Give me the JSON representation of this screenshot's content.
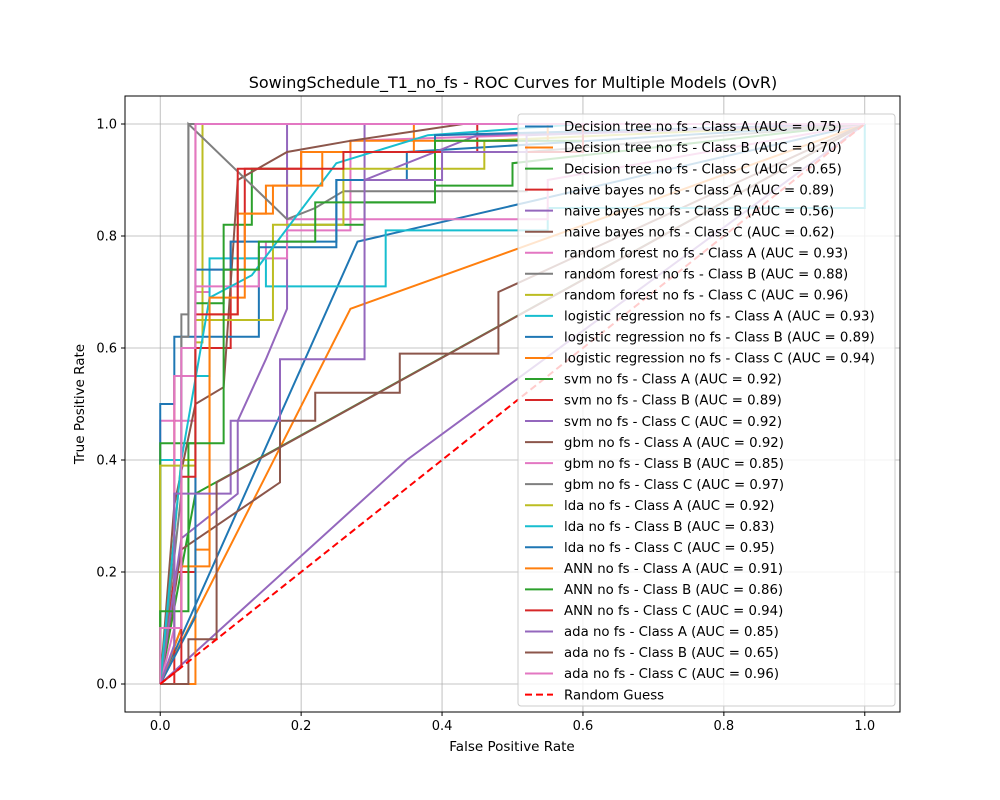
{
  "chart_data": {
    "type": "line",
    "title": "SowingSchedule_T1_no_fs - ROC Curves for Multiple Models (OvR)",
    "xlabel": "False Positive Rate",
    "ylabel": "True Positive Rate",
    "xlim": [
      -0.05,
      1.05
    ],
    "ylim": [
      -0.05,
      1.05
    ],
    "xticks": [
      0.0,
      0.2,
      0.4,
      0.6,
      0.8,
      1.0
    ],
    "yticks": [
      0.0,
      0.2,
      0.4,
      0.6,
      0.8,
      1.0
    ],
    "xtick_labels": [
      "0.0",
      "0.2",
      "0.4",
      "0.6",
      "0.8",
      "1.0"
    ],
    "ytick_labels": [
      "0.0",
      "0.2",
      "0.4",
      "0.6",
      "0.8",
      "1.0"
    ],
    "grid": true,
    "legend_position": "top-right",
    "series": [
      {
        "name": "Decision tree no fs - Class A (AUC = 0.75)",
        "color": "#1f77b4",
        "dashed": false,
        "x": [
          0,
          0.28,
          1
        ],
        "y": [
          0,
          0.79,
          1
        ]
      },
      {
        "name": "Decision tree no fs - Class B (AUC = 0.70)",
        "color": "#ff7f0e",
        "dashed": false,
        "x": [
          0,
          0.27,
          1
        ],
        "y": [
          0,
          0.67,
          1
        ]
      },
      {
        "name": "Decision tree no fs - Class C (AUC = 0.65)",
        "color": "#2ca02c",
        "dashed": false,
        "x": [
          0,
          0.05,
          1
        ],
        "y": [
          0,
          0.34,
          1
        ]
      },
      {
        "name": "naive bayes no fs - Class A (AUC = 0.89)",
        "color": "#d62728",
        "dashed": false,
        "x": [
          0,
          0.02,
          0.02,
          0.05,
          0.05,
          0.1,
          0.1,
          0.12,
          0.12,
          0.2,
          0.2,
          0.45,
          0.45,
          1
        ],
        "y": [
          0,
          0,
          0.2,
          0.2,
          0.6,
          0.6,
          0.79,
          0.79,
          0.92,
          0.92,
          0.95,
          0.95,
          1,
          1
        ]
      },
      {
        "name": "naive bayes no fs - Class B (AUC = 0.56)",
        "color": "#9467bd",
        "dashed": false,
        "x": [
          0,
          0.35,
          1
        ],
        "y": [
          0,
          0.4,
          1
        ]
      },
      {
        "name": "naive bayes no fs - Class C (AUC = 0.62)",
        "color": "#8c564b",
        "dashed": false,
        "x": [
          0,
          0.03,
          0.17,
          0.17,
          0.22,
          0.22,
          0.34,
          0.34,
          0.48,
          0.48,
          1
        ],
        "y": [
          0,
          0.24,
          0.36,
          0.47,
          0.47,
          0.52,
          0.52,
          0.59,
          0.59,
          0.7,
          1
        ]
      },
      {
        "name": "random forest no fs - Class A (AUC = 0.93)",
        "color": "#e377c2",
        "dashed": false,
        "x": [
          0,
          0,
          0.05,
          0.05,
          0.07,
          0.07,
          0.12,
          0.12,
          0.15,
          0.15,
          0.18,
          0.18,
          0.27,
          0.27,
          1
        ],
        "y": [
          0,
          0.47,
          0.47,
          0.7,
          0.7,
          0.74,
          0.74,
          0.76,
          0.76,
          0.79,
          0.79,
          0.81,
          0.81,
          0.97,
          1
        ]
      },
      {
        "name": "random forest no fs - Class B (AUC = 0.88)",
        "color": "#7f7f7f",
        "dashed": false,
        "x": [
          0,
          0.03,
          0.03,
          0.04,
          0.04,
          1
        ],
        "y": [
          0,
          0.1,
          0.66,
          0.66,
          1.0,
          1
        ]
      },
      {
        "name": "random forest no fs - Class C (AUC = 0.96)",
        "color": "#bcbd22",
        "dashed": false,
        "x": [
          0,
          0.03,
          0.03,
          0.05,
          0.05,
          0.06,
          0.06,
          1
        ],
        "y": [
          0,
          0.4,
          0.4,
          0.4,
          0.61,
          0.61,
          1.0,
          1
        ]
      },
      {
        "name": "logistic regression no fs - Class A (AUC = 0.93)",
        "color": "#17becf",
        "dashed": false,
        "x": [
          0,
          0,
          0.03,
          0.03,
          0.07,
          0.07,
          0.15,
          0.15,
          0.32,
          0.32,
          0.55,
          0.55,
          1,
          1
        ],
        "y": [
          0,
          0.4,
          0.4,
          0.55,
          0.55,
          0.76,
          0.76,
          0.71,
          0.71,
          0.81,
          0.81,
          0.85,
          0.85,
          1
        ]
      },
      {
        "name": "logistic regression no fs - Class B (AUC = 0.89)",
        "color": "#1f77b4",
        "dashed": false,
        "x": [
          0,
          0,
          0.02,
          0.02,
          0.14,
          0.14,
          0.25,
          0.25,
          0.35,
          0.35,
          1
        ],
        "y": [
          0,
          0.5,
          0.5,
          0.62,
          0.62,
          0.78,
          0.78,
          0.9,
          0.9,
          0.95,
          1
        ]
      },
      {
        "name": "logistic regression no fs - Class C (AUC = 0.94)",
        "color": "#ff7f0e",
        "dashed": false,
        "x": [
          0,
          0.05,
          0.05,
          0.07,
          0.07,
          0.11,
          0.11,
          0.15,
          0.15,
          0.2,
          0.2,
          0.27,
          0.27,
          0.36,
          0.36,
          1
        ],
        "y": [
          0,
          0,
          0.24,
          0.24,
          0.66,
          0.66,
          0.84,
          0.84,
          0.89,
          0.89,
          0.95,
          0.95,
          0.97,
          0.97,
          1,
          1
        ]
      },
      {
        "name": "svm no fs - Class A (AUC = 0.92)",
        "color": "#2ca02c",
        "dashed": false,
        "x": [
          0,
          0,
          0.05,
          0.05,
          0.09,
          0.09,
          0.13,
          0.13,
          0.18,
          0.18,
          0.29,
          0.29,
          0.39,
          0.39,
          0.5,
          0.5,
          1
        ],
        "y": [
          0,
          0.43,
          0.43,
          0.68,
          0.68,
          0.82,
          0.82,
          0.92,
          0.92,
          0.82,
          0.82,
          0.86,
          0.86,
          0.89,
          0.89,
          0.93,
          1
        ]
      },
      {
        "name": "svm no fs - Class B (AUC = 0.89)",
        "color": "#d62728",
        "dashed": false,
        "x": [
          0,
          0.02,
          0.02,
          0.05,
          0.05,
          0.09,
          0.09,
          1
        ],
        "y": [
          0,
          0.19,
          0.55,
          0.55,
          1.0,
          1.0,
          1.0,
          1
        ]
      },
      {
        "name": "svm no fs - Class C (AUC = 0.92)",
        "color": "#9467bd",
        "dashed": false,
        "x": [
          0,
          0.03,
          0.03,
          0.11,
          0.11,
          0.15,
          0.15,
          0.18,
          0.18,
          0.29,
          0.29,
          0.45,
          1
        ],
        "y": [
          0,
          0.26,
          0.26,
          0.34,
          0.47,
          0.58,
          0.58,
          0.67,
          1.0,
          1.0,
          0.9,
          0.98,
          1
        ]
      },
      {
        "name": "gbm no fs - Class A (AUC = 0.92)",
        "color": "#8c564b",
        "dashed": false,
        "x": [
          0,
          0.02,
          0.02,
          0.05,
          0.05,
          0.09,
          0.09,
          0.11,
          0.11,
          0.18,
          0.18,
          0.27,
          0.27,
          0.43,
          0.43,
          1
        ],
        "y": [
          0,
          0.32,
          0.32,
          0.5,
          0.5,
          0.53,
          0.53,
          0.9,
          0.9,
          0.95,
          0.95,
          0.97,
          0.97,
          1,
          1,
          1
        ]
      },
      {
        "name": "gbm no fs - Class B (AUC = 0.85)",
        "color": "#e377c2",
        "dashed": false,
        "x": [
          0,
          0.02,
          0.02,
          0.05,
          0.05,
          0.14,
          0.14,
          0.18,
          0.18,
          0.29,
          0.29,
          0.55,
          0.55,
          1
        ],
        "y": [
          0,
          0.1,
          0.55,
          0.55,
          0.71,
          0.71,
          0.76,
          0.76,
          0.83,
          0.83,
          0.83,
          0.83,
          0.9,
          1
        ]
      },
      {
        "name": "gbm no fs - Class C (AUC = 0.97)",
        "color": "#7f7f7f",
        "dashed": false,
        "x": [
          0,
          0.03,
          0.03,
          0.04,
          0.04,
          0.18,
          0.18,
          0.22,
          0.22,
          0.26,
          0.26,
          0.52,
          0.52,
          1
        ],
        "y": [
          0,
          0.34,
          0.62,
          0.62,
          1.0,
          0.83,
          0.83,
          0.85,
          0.85,
          0.88,
          0.88,
          0.88,
          0.95,
          1
        ]
      },
      {
        "name": "lda no fs - Class A (AUC = 0.92)",
        "color": "#bcbd22",
        "dashed": false,
        "x": [
          0,
          0,
          0.05,
          0.05,
          0.16,
          0.16,
          0.26,
          0.26,
          0.46,
          0.46,
          1
        ],
        "y": [
          0,
          0.39,
          0.39,
          0.65,
          0.65,
          0.82,
          0.82,
          0.92,
          0.92,
          0.97,
          1
        ]
      },
      {
        "name": "lda no fs - Class B (AUC = 0.83)",
        "color": "#17becf",
        "dashed": false,
        "x": [
          0,
          0.03,
          0.03,
          0.07,
          0.07,
          0.13,
          0.13,
          0.25,
          0.25,
          0.38,
          0.38,
          0.6,
          0.6,
          1
        ],
        "y": [
          0,
          0.4,
          0.4,
          0.69,
          0.69,
          0.73,
          0.73,
          0.93,
          0.93,
          0.98,
          0.98,
          1,
          1,
          1
        ]
      },
      {
        "name": "lda no fs - Class C (AUC = 0.95)",
        "color": "#1f77b4",
        "dashed": false,
        "x": [
          0,
          0.05,
          0.05,
          0.1,
          0.1,
          0.16,
          0.16,
          0.25,
          0.25,
          0.39,
          0.39,
          1
        ],
        "y": [
          0,
          0.12,
          0.74,
          0.74,
          0.79,
          0.79,
          0.79,
          0.79,
          0.9,
          0.9,
          0.98,
          1
        ]
      },
      {
        "name": "ANN no fs - Class A (AUC = 0.91)",
        "color": "#ff7f0e",
        "dashed": false,
        "x": [
          0,
          0.03,
          0.03,
          0.07,
          0.07,
          0.12,
          0.12,
          0.16,
          0.16,
          0.23,
          0.23,
          0.36,
          0.36,
          0.55,
          0.55,
          1
        ],
        "y": [
          0,
          0.1,
          0.21,
          0.21,
          0.69,
          0.69,
          0.84,
          0.84,
          0.89,
          0.89,
          0.95,
          0.95,
          0.97,
          0.97,
          1,
          1
        ]
      },
      {
        "name": "ANN no fs - Class B (AUC = 0.86)",
        "color": "#2ca02c",
        "dashed": false,
        "x": [
          0,
          0,
          0.04,
          0.04,
          0.09,
          0.09,
          0.14,
          0.14,
          0.22,
          0.22,
          0.39,
          0.39,
          0.6,
          0.6,
          1
        ],
        "y": [
          0,
          0.13,
          0.13,
          0.43,
          0.43,
          0.74,
          0.74,
          0.79,
          0.79,
          0.86,
          0.86,
          0.97,
          0.97,
          1,
          1
        ]
      },
      {
        "name": "ANN no fs - Class C (AUC = 0.94)",
        "color": "#d62728",
        "dashed": false,
        "x": [
          0,
          0.03,
          0.03,
          0.05,
          0.05,
          0.11,
          0.11,
          0.18,
          0.18,
          0.26,
          0.26,
          0.6,
          0.6,
          1
        ],
        "y": [
          0,
          0.03,
          0.37,
          0.37,
          0.66,
          0.66,
          0.92,
          0.92,
          0.92,
          0.92,
          0.95,
          0.95,
          1,
          1
        ]
      },
      {
        "name": "ada no fs - Class A (AUC = 0.85)",
        "color": "#9467bd",
        "dashed": false,
        "x": [
          0,
          0.02,
          0.02,
          0.1,
          0.1,
          0.17,
          0.17,
          0.29,
          0.29,
          0.4,
          0.4,
          0.52,
          0.52,
          1
        ],
        "y": [
          0,
          0.07,
          0.34,
          0.34,
          0.47,
          0.47,
          0.58,
          0.58,
          0.9,
          0.9,
          0.95,
          0.95,
          0.98,
          1
        ]
      },
      {
        "name": "ada no fs - Class B (AUC = 0.65)",
        "color": "#8c564b",
        "dashed": false,
        "x": [
          0,
          0.04,
          0.04,
          0.08,
          0.08,
          1
        ],
        "y": [
          0,
          0,
          0.08,
          0.08,
          0.36,
          1
        ]
      },
      {
        "name": "ada no fs - Class C (AUC = 0.96)",
        "color": "#e377c2",
        "dashed": false,
        "x": [
          0,
          0,
          0.03,
          0.03,
          0.05,
          0.05,
          0.09,
          0.09,
          0.13,
          0.13,
          0.29,
          0.29,
          0.45,
          0.45,
          1
        ],
        "y": [
          0,
          0.1,
          0.1,
          0.6,
          0.6,
          1.0,
          1.0,
          1.0,
          1.0,
          1.0,
          1.0,
          1.0,
          1.0,
          1,
          1
        ]
      },
      {
        "name": "Random Guess",
        "color": "#ff0000",
        "dashed": true,
        "x": [
          0,
          1
        ],
        "y": [
          0,
          1
        ]
      }
    ]
  }
}
